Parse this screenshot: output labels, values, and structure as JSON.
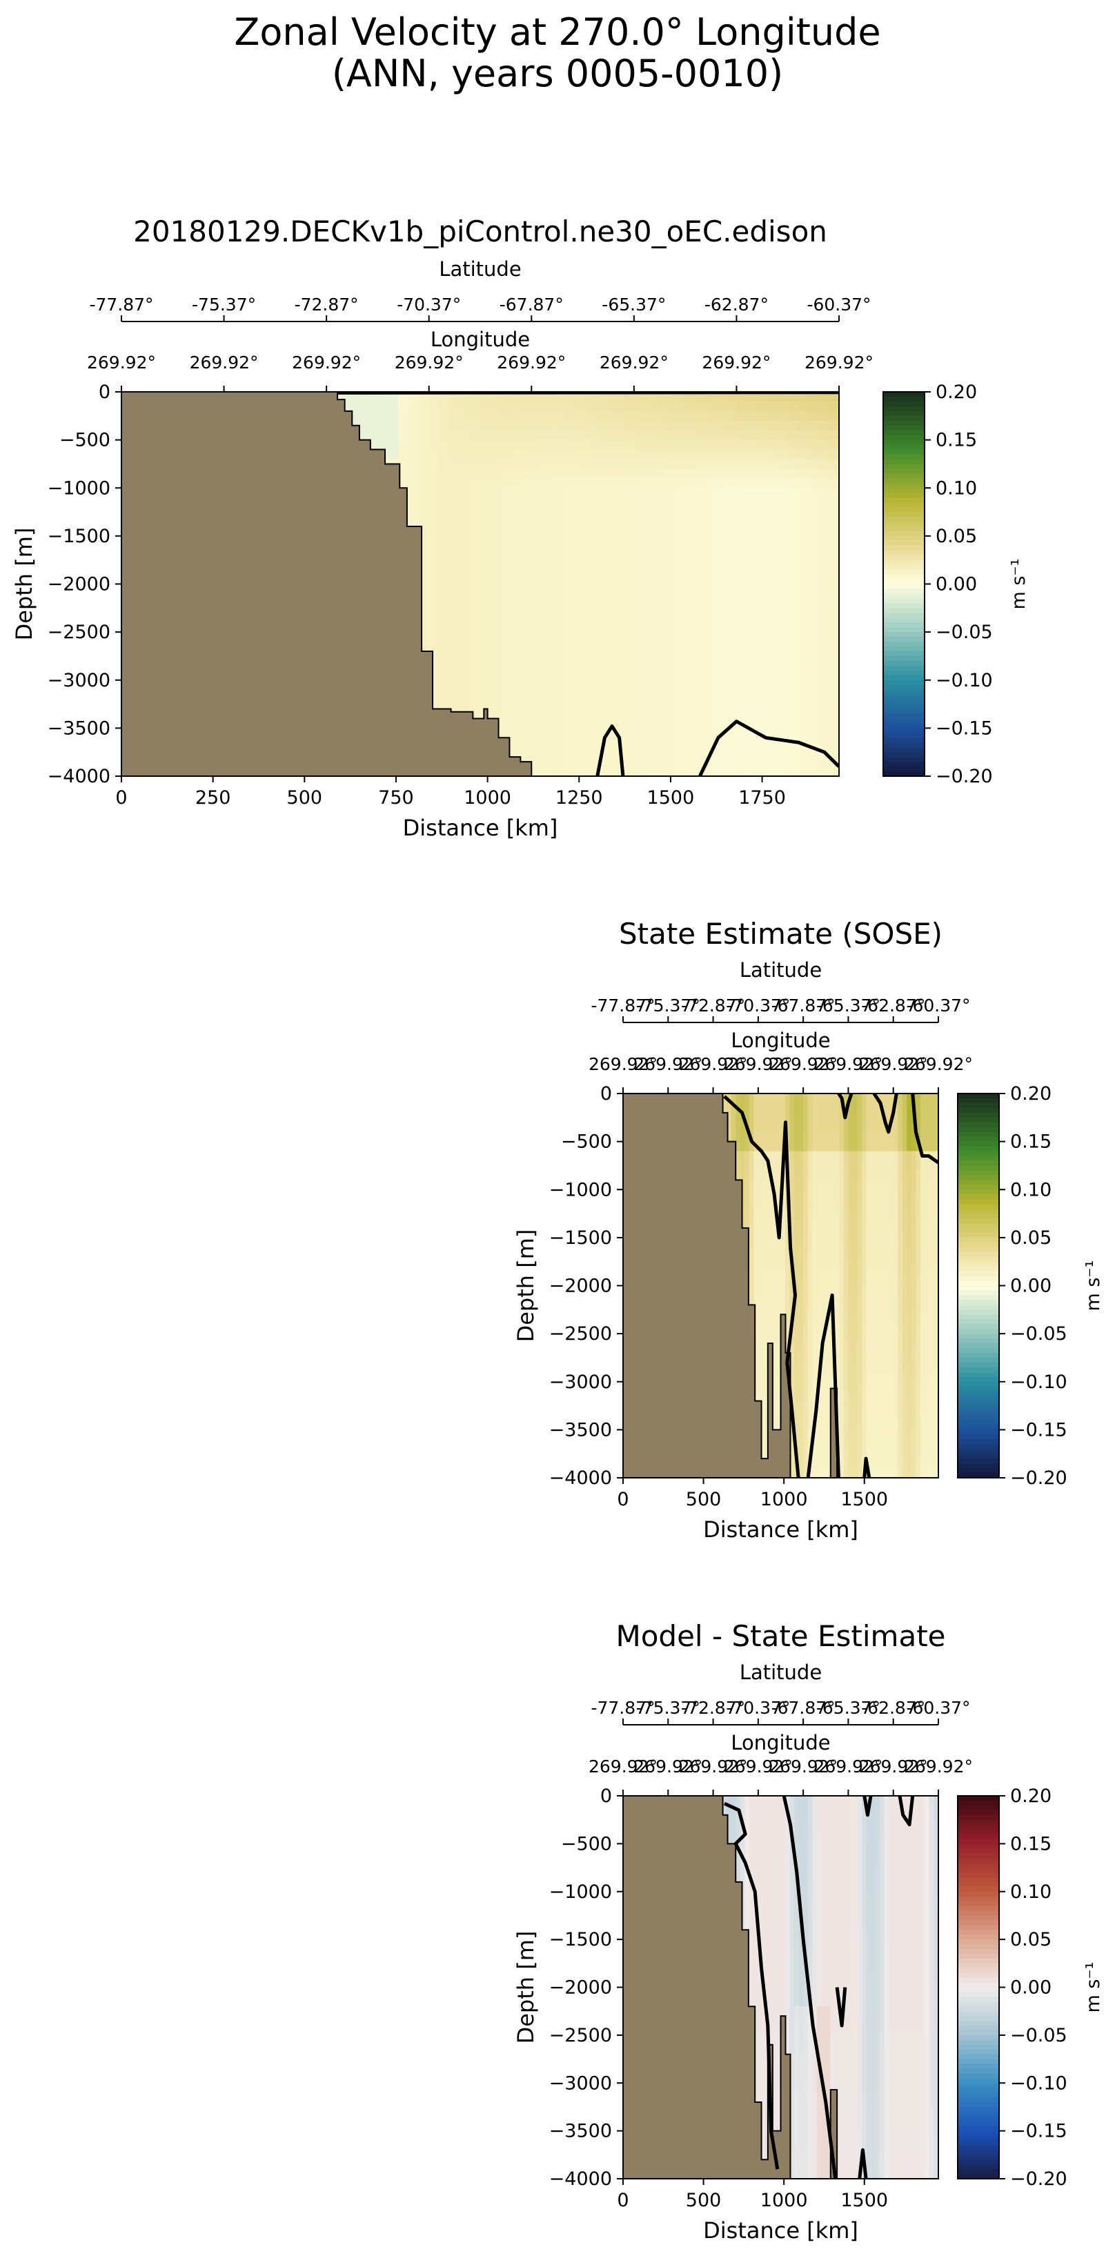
{
  "figure": {
    "title_line1": "Zonal Velocity at 270.0° Longitude",
    "title_line2": "(ANN, years 0005-0010)"
  },
  "panels": [
    {
      "title": "20180129.DECKv1b_piControl.ne30_oEC.edison",
      "cmap": "delta",
      "colorbar_label": "m s⁻¹"
    },
    {
      "title": "State Estimate (SOSE)",
      "cmap": "delta",
      "colorbar_label": "m s⁻¹"
    },
    {
      "title": "Model - State Estimate",
      "cmap": "balance",
      "colorbar_label": "m s⁻¹"
    }
  ],
  "colors": {
    "land": "#8f7f62",
    "contour": "#000000"
  },
  "chart_data": [
    {
      "type": "heatmap",
      "title": "20180129.DECKv1b_piControl.ne30_oEC.edison",
      "xlabel": "Distance [km]",
      "ylabel": "Depth [m]",
      "xlim": [
        0,
        1960
      ],
      "ylim": [
        -4000,
        0
      ],
      "xticks": [
        0,
        250,
        500,
        750,
        1000,
        1250,
        1500,
        1750
      ],
      "yticks": [
        0,
        -500,
        -1000,
        -1500,
        -2000,
        -2500,
        -3000,
        -3500,
        -4000
      ],
      "ytick_labels": [
        "0",
        "−500",
        "−1000",
        "−1500",
        "−2000",
        "−2500",
        "−3000",
        "−3500",
        "−4000"
      ],
      "top_axes": [
        {
          "label": "Latitude",
          "tick_labels": [
            "-77.87°",
            "-75.37°",
            "-72.87°",
            "-70.37°",
            "-67.87°",
            "-65.37°",
            "-62.87°",
            "-60.37°"
          ]
        },
        {
          "label": "Longitude",
          "tick_labels": [
            "269.92°",
            "269.92°",
            "269.92°",
            "269.92°",
            "269.92°",
            "269.92°",
            "269.92°",
            "269.92°"
          ]
        }
      ],
      "colorbar": {
        "label": "m s⁻¹",
        "range": [
          -0.2,
          0.2
        ],
        "ticks": [
          "0.20",
          "0.15",
          "0.10",
          "0.05",
          "0.00",
          "−0.05",
          "−0.10",
          "−0.15",
          "−0.20"
        ]
      },
      "bathymetry_km_depth": [
        [
          0,
          0
        ],
        [
          590,
          0
        ],
        [
          590,
          -80
        ],
        [
          610,
          -80
        ],
        [
          610,
          -200
        ],
        [
          630,
          -200
        ],
        [
          630,
          -350
        ],
        [
          650,
          -350
        ],
        [
          650,
          -500
        ],
        [
          680,
          -500
        ],
        [
          680,
          -600
        ],
        [
          720,
          -600
        ],
        [
          720,
          -750
        ],
        [
          760,
          -750
        ],
        [
          760,
          -1000
        ],
        [
          780,
          -1000
        ],
        [
          780,
          -1400
        ],
        [
          820,
          -1400
        ],
        [
          820,
          -2700
        ],
        [
          850,
          -2700
        ],
        [
          850,
          -3300
        ],
        [
          900,
          -3300
        ],
        [
          900,
          -3330
        ],
        [
          960,
          -3330
        ],
        [
          960,
          -3400
        ],
        [
          990,
          -3400
        ],
        [
          990,
          -3300
        ],
        [
          1000,
          -3300
        ],
        [
          1000,
          -3400
        ],
        [
          1030,
          -3400
        ],
        [
          1030,
          -3600
        ],
        [
          1060,
          -3600
        ],
        [
          1060,
          -3800
        ],
        [
          1090,
          -3800
        ],
        [
          1090,
          -3850
        ],
        [
          1120,
          -3850
        ],
        [
          1120,
          -4000
        ],
        [
          0,
          -4000
        ]
      ],
      "zonal_velocity_profile": {
        "distance_km": [
          750,
          900,
          1050,
          1200,
          1350,
          1500,
          1650,
          1800,
          1950
        ],
        "surface_m_s": [
          0.005,
          0.02,
          0.025,
          0.025,
          0.03,
          0.035,
          0.04,
          0.045,
          0.05
        ],
        "deep_m_s": [
          0.01,
          0.015,
          0.012,
          0.01,
          0.01,
          0.008,
          0.005,
          0.004,
          0.01
        ]
      },
      "zero_contours": [
        [
          [
            590,
            -10
          ],
          [
            1930,
            -5
          ],
          [
            1960,
            -5
          ]
        ],
        [
          [
            1300,
            -4000
          ],
          [
            1320,
            -3600
          ],
          [
            1340,
            -3480
          ],
          [
            1360,
            -3600
          ],
          [
            1370,
            -4000
          ]
        ],
        [
          [
            1580,
            -4000
          ],
          [
            1630,
            -3600
          ],
          [
            1680,
            -3430
          ],
          [
            1760,
            -3600
          ],
          [
            1850,
            -3650
          ],
          [
            1920,
            -3750
          ],
          [
            1960,
            -3900
          ]
        ]
      ]
    },
    {
      "type": "heatmap",
      "title": "State Estimate (SOSE)",
      "xlabel": "Distance [km]",
      "ylabel": "Depth [m]",
      "xlim": [
        0,
        1960
      ],
      "ylim": [
        -4000,
        0
      ],
      "xticks": [
        0,
        500,
        1000,
        1500
      ],
      "yticks": [
        0,
        -500,
        -1000,
        -1500,
        -2000,
        -2500,
        -3000,
        -3500,
        -4000
      ],
      "ytick_labels": [
        "0",
        "−500",
        "−1000",
        "−1500",
        "−2000",
        "−2500",
        "−3000",
        "−3500",
        "−4000"
      ],
      "top_axes": [
        {
          "label": "Latitude",
          "tick_labels": [
            "-77.87°",
            "-75.37°",
            "-72.87°",
            "-70.37°",
            "-67.87°",
            "-65.37°",
            "-62.87°",
            "-60.37°"
          ]
        },
        {
          "label": "Longitude",
          "tick_labels": [
            "269.92°",
            "269.92°",
            "269.92°",
            "269.92°",
            "269.92°",
            "269.92°",
            "269.92°",
            "269.92°"
          ]
        }
      ],
      "colorbar": {
        "label": "m s⁻¹",
        "range": [
          -0.2,
          0.2
        ],
        "ticks": [
          "0.20",
          "0.15",
          "0.10",
          "0.05",
          "0.00",
          "−0.05",
          "−0.10",
          "−0.15",
          "−0.20"
        ]
      },
      "bathymetry_km_depth": [
        [
          0,
          0
        ],
        [
          620,
          0
        ],
        [
          620,
          -200
        ],
        [
          650,
          -200
        ],
        [
          650,
          -500
        ],
        [
          700,
          -500
        ],
        [
          700,
          -900
        ],
        [
          740,
          -900
        ],
        [
          740,
          -1400
        ],
        [
          780,
          -1400
        ],
        [
          780,
          -2200
        ],
        [
          820,
          -2200
        ],
        [
          820,
          -3200
        ],
        [
          860,
          -3200
        ],
        [
          860,
          -3800
        ],
        [
          900,
          -3800
        ],
        [
          900,
          -2600
        ],
        [
          930,
          -2600
        ],
        [
          930,
          -3500
        ],
        [
          980,
          -3500
        ],
        [
          980,
          -2300
        ],
        [
          1010,
          -2300
        ],
        [
          1010,
          -2700
        ],
        [
          1040,
          -2700
        ],
        [
          1040,
          -4000
        ],
        [
          0,
          -4000
        ]
      ],
      "extra_land": [
        [
          [
            1290,
            -4000
          ],
          [
            1290,
            -3070
          ],
          [
            1330,
            -3070
          ],
          [
            1330,
            -4000
          ]
        ]
      ],
      "zero_contours": [
        [
          [
            630,
            -30
          ],
          [
            740,
            -200
          ],
          [
            800,
            -500
          ],
          [
            860,
            -600
          ],
          [
            900,
            -700
          ],
          [
            940,
            -1050
          ],
          [
            970,
            -1500
          ],
          [
            1010,
            -300
          ],
          [
            1040,
            -1600
          ],
          [
            1070,
            -2100
          ],
          [
            1020,
            -2800
          ],
          [
            1050,
            -3300
          ],
          [
            1090,
            -4000
          ]
        ],
        [
          [
            1150,
            -4000
          ],
          [
            1200,
            -3300
          ],
          [
            1240,
            -2600
          ],
          [
            1300,
            -2100
          ],
          [
            1340,
            -4000
          ]
        ],
        [
          [
            1560,
            0
          ],
          [
            1600,
            -100
          ],
          [
            1630,
            -300
          ],
          [
            1650,
            -400
          ],
          [
            1680,
            -200
          ],
          [
            1700,
            0
          ]
        ],
        [
          [
            1340,
            0
          ],
          [
            1360,
            -50
          ],
          [
            1380,
            -250
          ],
          [
            1400,
            -100
          ],
          [
            1420,
            0
          ]
        ],
        [
          [
            1800,
            0
          ],
          [
            1820,
            -400
          ],
          [
            1860,
            -650
          ],
          [
            1900,
            -650
          ],
          [
            1960,
            -720
          ]
        ],
        [
          [
            1500,
            -4000
          ],
          [
            1510,
            -3800
          ],
          [
            1530,
            -4000
          ]
        ]
      ]
    },
    {
      "type": "heatmap",
      "title": "Model - State Estimate",
      "xlabel": "Distance [km]",
      "ylabel": "Depth [m]",
      "xlim": [
        0,
        1960
      ],
      "ylim": [
        -4000,
        0
      ],
      "xticks": [
        0,
        500,
        1000,
        1500
      ],
      "yticks": [
        0,
        -500,
        -1000,
        -1500,
        -2000,
        -2500,
        -3000,
        -3500,
        -4000
      ],
      "ytick_labels": [
        "0",
        "−500",
        "−1000",
        "−1500",
        "−2000",
        "−2500",
        "−3000",
        "−3500",
        "−4000"
      ],
      "top_axes": [
        {
          "label": "Latitude",
          "tick_labels": [
            "-77.87°",
            "-75.37°",
            "-72.87°",
            "-70.37°",
            "-67.87°",
            "-65.37°",
            "-62.87°",
            "-60.37°"
          ]
        },
        {
          "label": "Longitude",
          "tick_labels": [
            "269.92°",
            "269.92°",
            "269.92°",
            "269.92°",
            "269.92°",
            "269.92°",
            "269.92°",
            "269.92°"
          ]
        }
      ],
      "colorbar": {
        "label": "m s⁻¹",
        "range": [
          -0.2,
          0.2
        ],
        "ticks": [
          "0.20",
          "0.15",
          "0.10",
          "0.05",
          "0.00",
          "−0.05",
          "−0.10",
          "−0.15",
          "−0.20"
        ]
      },
      "bathymetry_km_depth": [
        [
          0,
          0
        ],
        [
          620,
          0
        ],
        [
          620,
          -200
        ],
        [
          650,
          -200
        ],
        [
          650,
          -500
        ],
        [
          700,
          -500
        ],
        [
          700,
          -900
        ],
        [
          740,
          -900
        ],
        [
          740,
          -1400
        ],
        [
          780,
          -1400
        ],
        [
          780,
          -2200
        ],
        [
          820,
          -2200
        ],
        [
          820,
          -3200
        ],
        [
          860,
          -3200
        ],
        [
          860,
          -3800
        ],
        [
          900,
          -3800
        ],
        [
          900,
          -2600
        ],
        [
          930,
          -2600
        ],
        [
          930,
          -3500
        ],
        [
          980,
          -3500
        ],
        [
          980,
          -2300
        ],
        [
          1010,
          -2300
        ],
        [
          1010,
          -2700
        ],
        [
          1040,
          -2700
        ],
        [
          1040,
          -4000
        ],
        [
          0,
          -4000
        ]
      ],
      "extra_land": [
        [
          [
            1290,
            -4000
          ],
          [
            1290,
            -3070
          ],
          [
            1330,
            -3070
          ],
          [
            1330,
            -4000
          ]
        ]
      ],
      "zero_contours": [
        [
          [
            630,
            -80
          ],
          [
            720,
            -150
          ],
          [
            760,
            -400
          ],
          [
            700,
            -500
          ],
          [
            760,
            -700
          ],
          [
            820,
            -1000
          ],
          [
            860,
            -1800
          ],
          [
            900,
            -2400
          ],
          [
            920,
            -3500
          ],
          [
            960,
            -3900
          ]
        ],
        [
          [
            1000,
            0
          ],
          [
            1040,
            -300
          ],
          [
            1080,
            -800
          ],
          [
            1120,
            -1500
          ],
          [
            1180,
            -2400
          ],
          [
            1260,
            -3200
          ],
          [
            1320,
            -4000
          ]
        ],
        [
          [
            1500,
            0
          ],
          [
            1520,
            -200
          ],
          [
            1540,
            0
          ]
        ],
        [
          [
            1720,
            0
          ],
          [
            1740,
            -200
          ],
          [
            1780,
            -300
          ],
          [
            1800,
            0
          ]
        ],
        [
          [
            1330,
            -2000
          ],
          [
            1360,
            -2400
          ],
          [
            1380,
            -2000
          ]
        ],
        [
          [
            1470,
            -4000
          ],
          [
            1490,
            -3700
          ],
          [
            1510,
            -4000
          ]
        ]
      ]
    }
  ]
}
